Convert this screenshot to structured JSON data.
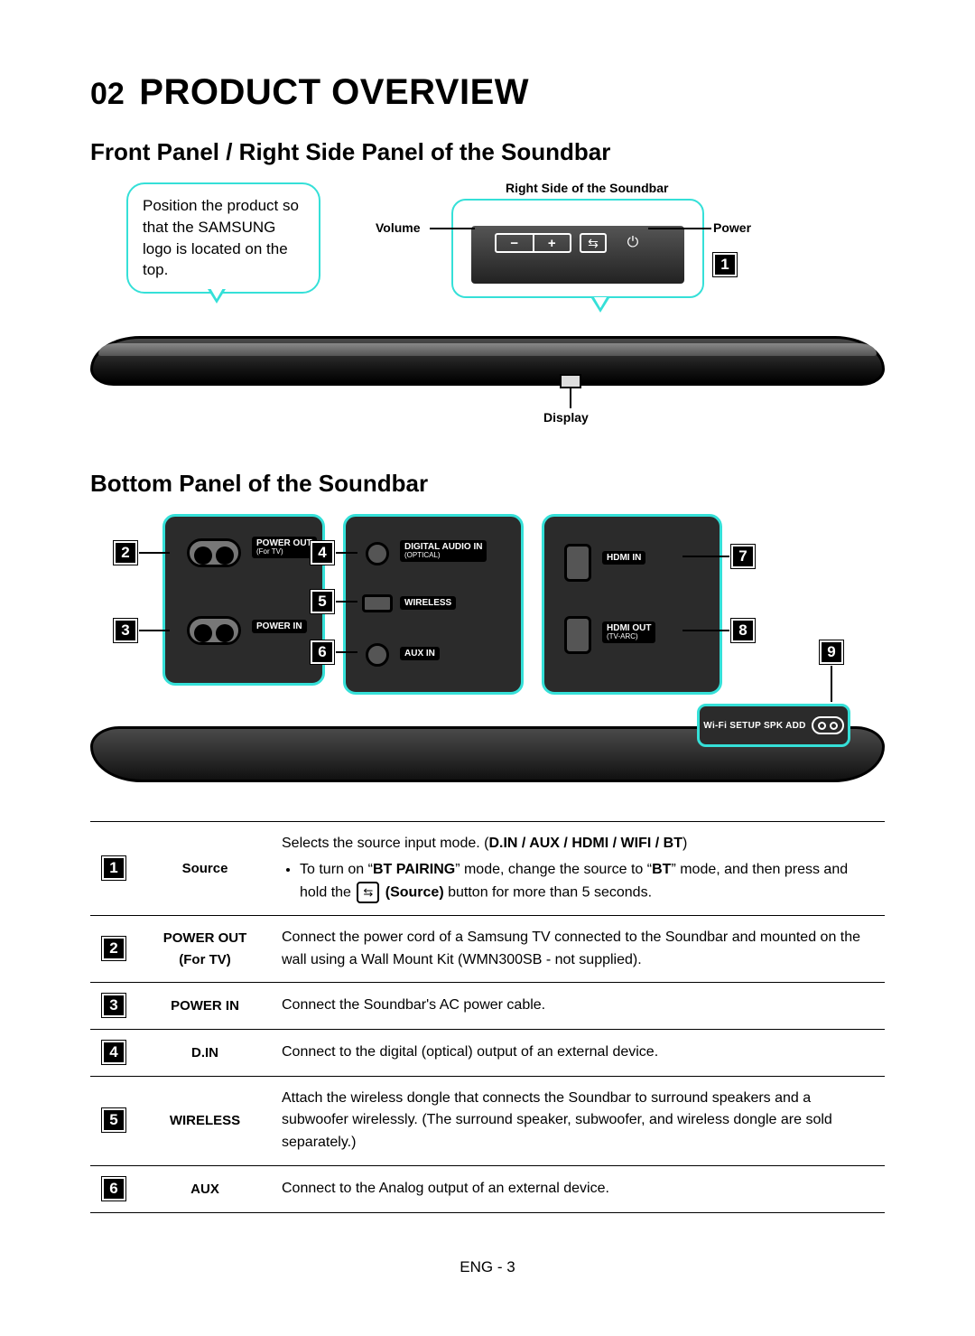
{
  "section_number": "02",
  "section_title": "PRODUCT OVERVIEW",
  "front": {
    "heading": "Front Panel / Right Side Panel of the Soundbar",
    "callout": "Position the product so that the SAMSUNG logo is located on the top.",
    "right_side_label": "Right Side of the Soundbar",
    "volume_label": "Volume",
    "power_label": "Power",
    "display_label": "Display",
    "marker1": "1"
  },
  "bottom": {
    "heading": "Bottom Panel of the Soundbar",
    "markers": {
      "m2": "2",
      "m3": "3",
      "m4": "4",
      "m5": "5",
      "m6": "6",
      "m7": "7",
      "m8": "8",
      "m9": "9"
    },
    "panel1": {
      "power_out_label": "POWER OUT",
      "power_out_sub": "(For TV)",
      "power_in_label": "POWER IN"
    },
    "panel2": {
      "digital_label": "DIGITAL AUDIO IN",
      "digital_sub": "(OPTICAL)",
      "wireless_label": "WIRELESS",
      "aux_label": "AUX IN"
    },
    "panel3": {
      "hdmi_in_label": "HDMI IN",
      "hdmi_out_label": "HDMI OUT",
      "hdmi_out_sub": "(TV-ARC)"
    },
    "wifi_label": "Wi-Fi SETUP  SPK ADD"
  },
  "table": {
    "rows": [
      {
        "num": "1",
        "name": "Source",
        "desc_line1_pre": "Selects the source input mode. (",
        "desc_line1_bold": "D.IN / AUX / HDMI / WIFI / BT",
        "desc_line1_post": ")",
        "bullet_pre": "To turn on “",
        "bullet_b1": "BT PAIRING",
        "bullet_mid": "” mode, change the source to “",
        "bullet_b2": "BT",
        "bullet_post1": "” mode, and then press and hold the ",
        "source_btn": "⇆",
        "bullet_b3": "(Source)",
        "bullet_post2": " button for more than 5 seconds."
      },
      {
        "num": "2",
        "name_line1": "POWER OUT",
        "name_line2": "(For TV)",
        "desc": "Connect the power cord of a Samsung TV connected to the Soundbar and mounted on the wall using a Wall Mount Kit (WMN300SB - not supplied)."
      },
      {
        "num": "3",
        "name": "POWER IN",
        "desc": "Connect the Soundbar's AC power cable."
      },
      {
        "num": "4",
        "name": "D.IN",
        "desc": "Connect to the digital (optical) output of an external device."
      },
      {
        "num": "5",
        "name": "WIRELESS",
        "desc": "Attach the wireless dongle that connects the Soundbar to surround speakers and a subwoofer wirelessly. (The surround speaker, subwoofer, and wireless dongle are sold separately.)"
      },
      {
        "num": "6",
        "name": "AUX",
        "desc": "Connect to the Analog output of an external device."
      }
    ]
  },
  "footer": "ENG - 3",
  "colors": {
    "accent": "#35e0d8",
    "panel_bg": "#2b2b2b",
    "text": "#000000",
    "white": "#ffffff"
  }
}
